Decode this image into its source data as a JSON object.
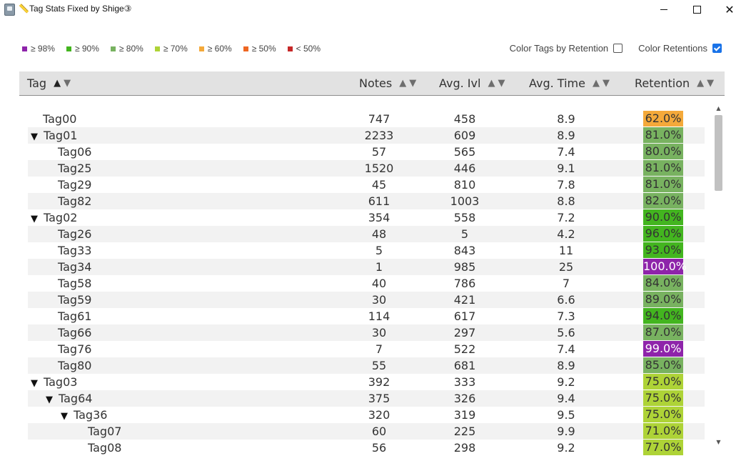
{
  "window": {
    "title": "📏Tag Stats Fixed by Shige③",
    "minimize_label": "",
    "maximize_label": "",
    "close_label": "✕"
  },
  "legend": [
    {
      "label": "≥ 98%",
      "color": "#8e24aa"
    },
    {
      "label": "≥ 90%",
      "color": "#43b51f"
    },
    {
      "label": "≥ 80%",
      "color": "#78b260"
    },
    {
      "label": "≥ 70%",
      "color": "#aed337"
    },
    {
      "label": "≥ 60%",
      "color": "#f4a93a"
    },
    {
      "label": "≥ 50%",
      "color": "#ee6722"
    },
    {
      "label": "< 50%",
      "color": "#c62828"
    }
  ],
  "options": {
    "color_tags_label": "Color Tags by Retention",
    "color_tags_checked": false,
    "color_retentions_label": "Color Retentions",
    "color_retentions_checked": true
  },
  "columns": {
    "tag": "Tag",
    "notes": "Notes",
    "avg_ivl": "Avg. Ivl",
    "avg_time": "Avg. Time",
    "retention": "Retention"
  },
  "sort_icons": {
    "up": "▲",
    "down": "▼"
  },
  "retention_colors": {
    "purple": "#8e24aa",
    "green": "#43b51f",
    "sage": "#78b260",
    "lime": "#aed337",
    "orange": "#f4a93a"
  },
  "rows": [
    {
      "tag": "Tag00",
      "depth": 0,
      "expanded": false,
      "has_children": false,
      "notes": "747",
      "avg_ivl": "458",
      "avg_time": "8.9",
      "retention": "62.0%",
      "color": "orange"
    },
    {
      "tag": "Tag01",
      "depth": 0,
      "expanded": true,
      "has_children": true,
      "notes": "2233",
      "avg_ivl": "609",
      "avg_time": "8.9",
      "retention": "81.0%",
      "color": "sage"
    },
    {
      "tag": "Tag06",
      "depth": 1,
      "expanded": false,
      "has_children": false,
      "notes": "57",
      "avg_ivl": "565",
      "avg_time": "7.4",
      "retention": "80.0%",
      "color": "sage"
    },
    {
      "tag": "Tag25",
      "depth": 1,
      "expanded": false,
      "has_children": false,
      "notes": "1520",
      "avg_ivl": "446",
      "avg_time": "9.1",
      "retention": "81.0%",
      "color": "sage"
    },
    {
      "tag": "Tag29",
      "depth": 1,
      "expanded": false,
      "has_children": false,
      "notes": "45",
      "avg_ivl": "810",
      "avg_time": "7.8",
      "retention": "81.0%",
      "color": "sage"
    },
    {
      "tag": "Tag82",
      "depth": 1,
      "expanded": false,
      "has_children": false,
      "notes": "611",
      "avg_ivl": "1003",
      "avg_time": "8.8",
      "retention": "82.0%",
      "color": "sage"
    },
    {
      "tag": "Tag02",
      "depth": 0,
      "expanded": true,
      "has_children": true,
      "notes": "354",
      "avg_ivl": "558",
      "avg_time": "7.2",
      "retention": "90.0%",
      "color": "green"
    },
    {
      "tag": "Tag26",
      "depth": 1,
      "expanded": false,
      "has_children": false,
      "notes": "48",
      "avg_ivl": "5",
      "avg_time": "4.2",
      "retention": "96.0%",
      "color": "green"
    },
    {
      "tag": "Tag33",
      "depth": 1,
      "expanded": false,
      "has_children": false,
      "notes": "5",
      "avg_ivl": "843",
      "avg_time": "11",
      "retention": "93.0%",
      "color": "green"
    },
    {
      "tag": "Tag34",
      "depth": 1,
      "expanded": false,
      "has_children": false,
      "notes": "1",
      "avg_ivl": "985",
      "avg_time": "25",
      "retention": "100.0%",
      "color": "purple"
    },
    {
      "tag": "Tag58",
      "depth": 1,
      "expanded": false,
      "has_children": false,
      "notes": "40",
      "avg_ivl": "786",
      "avg_time": "7",
      "retention": "84.0%",
      "color": "sage"
    },
    {
      "tag": "Tag59",
      "depth": 1,
      "expanded": false,
      "has_children": false,
      "notes": "30",
      "avg_ivl": "421",
      "avg_time": "6.6",
      "retention": "89.0%",
      "color": "sage"
    },
    {
      "tag": "Tag61",
      "depth": 1,
      "expanded": false,
      "has_children": false,
      "notes": "114",
      "avg_ivl": "617",
      "avg_time": "7.3",
      "retention": "94.0%",
      "color": "green"
    },
    {
      "tag": "Tag66",
      "depth": 1,
      "expanded": false,
      "has_children": false,
      "notes": "30",
      "avg_ivl": "297",
      "avg_time": "5.6",
      "retention": "87.0%",
      "color": "sage"
    },
    {
      "tag": "Tag76",
      "depth": 1,
      "expanded": false,
      "has_children": false,
      "notes": "7",
      "avg_ivl": "522",
      "avg_time": "7.4",
      "retention": "99.0%",
      "color": "purple"
    },
    {
      "tag": "Tag80",
      "depth": 1,
      "expanded": false,
      "has_children": false,
      "notes": "55",
      "avg_ivl": "681",
      "avg_time": "8.9",
      "retention": "85.0%",
      "color": "sage"
    },
    {
      "tag": "Tag03",
      "depth": 0,
      "expanded": true,
      "has_children": true,
      "notes": "392",
      "avg_ivl": "333",
      "avg_time": "9.2",
      "retention": "75.0%",
      "color": "lime"
    },
    {
      "tag": "Tag64",
      "depth": 1,
      "expanded": true,
      "has_children": true,
      "notes": "375",
      "avg_ivl": "326",
      "avg_time": "9.4",
      "retention": "75.0%",
      "color": "lime"
    },
    {
      "tag": "Tag36",
      "depth": 2,
      "expanded": true,
      "has_children": true,
      "notes": "320",
      "avg_ivl": "319",
      "avg_time": "9.5",
      "retention": "75.0%",
      "color": "lime"
    },
    {
      "tag": "Tag07",
      "depth": 3,
      "expanded": false,
      "has_children": false,
      "notes": "60",
      "avg_ivl": "225",
      "avg_time": "9.9",
      "retention": "71.0%",
      "color": "lime"
    },
    {
      "tag": "Tag08",
      "depth": 3,
      "expanded": false,
      "has_children": false,
      "notes": "56",
      "avg_ivl": "298",
      "avg_time": "9.2",
      "retention": "77.0%",
      "color": "lime"
    }
  ]
}
